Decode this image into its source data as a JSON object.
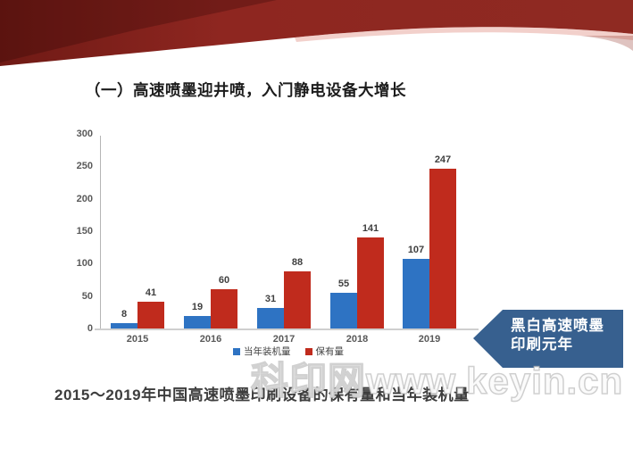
{
  "page": {
    "title": "（一）高速喷墨迎井喷，入门静电设备大增长",
    "caption": "2015～2019年中国高速喷墨印刷设备的保有量和当年装机量",
    "watermark": "科印网www.keyin.cn"
  },
  "callout": {
    "line1": "黑白高速喷墨",
    "line2": "印刷元年",
    "color": "#37608f"
  },
  "colors": {
    "header_red_dark": "#6f1a15",
    "header_red": "#8e2620",
    "bar_blue": "#2e73c3",
    "bar_red": "#c02b1d"
  },
  "chart_data": {
    "type": "bar",
    "categories": [
      "2015",
      "2016",
      "2017",
      "2018",
      "2019"
    ],
    "series": [
      {
        "name": "当年装机量",
        "color": "#2e73c3",
        "values": [
          8,
          19,
          31,
          55,
          107
        ]
      },
      {
        "name": "保有量",
        "color": "#c02b1d",
        "values": [
          41,
          60,
          88,
          141,
          247
        ]
      }
    ],
    "title": "",
    "xlabel": "",
    "ylabel": "",
    "ylim": [
      0,
      300
    ],
    "yticks": [
      0,
      50,
      100,
      150,
      200,
      250,
      300
    ],
    "grid": false,
    "legend_position": "bottom"
  }
}
